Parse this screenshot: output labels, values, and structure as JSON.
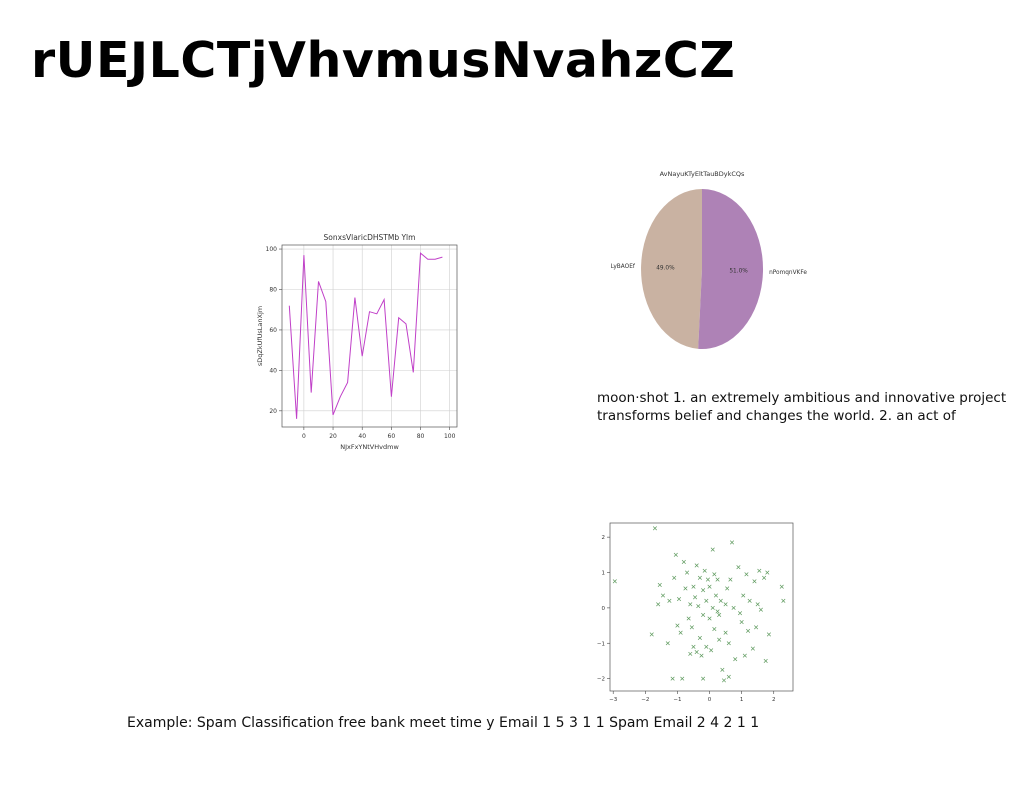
{
  "page": {
    "title": "rUEJLCTjVhvmusNvahzCZ",
    "caption_lines": [
      "moon·shot 1. an extremely ambitious and innovative project",
      "transforms belief and changes the world. 2. an act of"
    ],
    "footer": "Example: Spam Classification free bank meet time y Email 1 5 3 1 1 Spam Email 2 4 2 1 1"
  },
  "chart_data": [
    {
      "type": "line",
      "title": "SonxsVlaricDHSTMb Ylm",
      "xlabel": "NJxFxYNtVHvdmw",
      "ylabel": "sDqZkUfUsLanXjm",
      "x": [
        -10,
        -5,
        0,
        5,
        10,
        15,
        20,
        25,
        30,
        35,
        40,
        45,
        50,
        55,
        60,
        65,
        70,
        75,
        80,
        85,
        90,
        95
      ],
      "y": [
        72,
        16,
        97,
        29,
        84,
        74,
        18,
        27,
        34,
        76,
        47,
        69,
        68,
        75,
        27,
        66,
        63,
        39,
        98,
        95,
        95,
        96
      ],
      "xlim": [
        -15,
        105
      ],
      "ylim": [
        12,
        102
      ],
      "xticks": [
        0,
        20,
        40,
        60,
        80,
        100
      ],
      "yticks": [
        20,
        40,
        60,
        80,
        100
      ],
      "grid": true,
      "color": "#c040c8"
    },
    {
      "type": "pie",
      "title": "AvNayuKTyEltTauBDykCQs",
      "labels": [
        "LyBAOEf",
        "nPomqnVKFe"
      ],
      "values": [
        49.0,
        51.0
      ],
      "pct_labels": [
        "49.0%",
        "51.0%"
      ],
      "colors": [
        "#c9b2a2",
        "#ae82b6"
      ]
    },
    {
      "type": "scatter",
      "marker": "x",
      "color": "#5e9a5e",
      "xlim": [
        -3.1,
        2.6
      ],
      "ylim": [
        -2.35,
        2.4
      ],
      "xticks": [
        -3,
        -2,
        -1,
        0,
        1,
        2
      ],
      "yticks": [
        -2,
        -1,
        0,
        1,
        2
      ],
      "points": [
        [
          -2.95,
          0.75
        ],
        [
          -1.7,
          2.25
        ],
        [
          -1.55,
          0.65
        ],
        [
          -1.6,
          0.1
        ],
        [
          -1.8,
          -0.75
        ],
        [
          -1.3,
          -1.0
        ],
        [
          -1.45,
          0.35
        ],
        [
          -1.25,
          0.2
        ],
        [
          -1.1,
          0.85
        ],
        [
          -1.05,
          1.5
        ],
        [
          -1.0,
          -0.5
        ],
        [
          -0.95,
          0.25
        ],
        [
          -0.9,
          -0.7
        ],
        [
          -0.85,
          -2.0
        ],
        [
          -0.8,
          1.3
        ],
        [
          -0.75,
          0.55
        ],
        [
          -0.7,
          1.0
        ],
        [
          -0.65,
          -0.3
        ],
        [
          -0.6,
          0.1
        ],
        [
          -0.55,
          -0.55
        ],
        [
          -0.5,
          0.6
        ],
        [
          -0.5,
          -1.1
        ],
        [
          -0.45,
          0.3
        ],
        [
          -0.4,
          -1.25
        ],
        [
          -0.4,
          1.2
        ],
        [
          -0.35,
          0.05
        ],
        [
          -0.3,
          -0.85
        ],
        [
          -0.3,
          0.85
        ],
        [
          -0.25,
          -1.35
        ],
        [
          -0.2,
          0.5
        ],
        [
          -0.2,
          -0.2
        ],
        [
          -0.15,
          1.05
        ],
        [
          -0.1,
          0.2
        ],
        [
          -0.1,
          -1.1
        ],
        [
          -0.05,
          0.8
        ],
        [
          0.0,
          -0.3
        ],
        [
          0.0,
          0.6
        ],
        [
          0.05,
          -1.2
        ],
        [
          0.1,
          1.65
        ],
        [
          0.1,
          0.0
        ],
        [
          0.15,
          0.95
        ],
        [
          0.15,
          -0.6
        ],
        [
          0.2,
          0.35
        ],
        [
          0.25,
          -0.1
        ],
        [
          0.25,
          0.8
        ],
        [
          0.3,
          -0.2
        ],
        [
          0.35,
          0.2
        ],
        [
          0.4,
          -1.75
        ],
        [
          0.45,
          -2.05
        ],
        [
          0.5,
          0.1
        ],
        [
          0.5,
          -0.7
        ],
        [
          0.55,
          0.55
        ],
        [
          0.6,
          -1.0
        ],
        [
          0.65,
          0.8
        ],
        [
          0.7,
          1.85
        ],
        [
          0.75,
          0.0
        ],
        [
          0.8,
          -1.45
        ],
        [
          0.9,
          1.15
        ],
        [
          1.0,
          -0.4
        ],
        [
          1.05,
          0.35
        ],
        [
          1.1,
          -1.35
        ],
        [
          1.15,
          0.95
        ],
        [
          1.2,
          -0.65
        ],
        [
          1.25,
          0.2
        ],
        [
          1.35,
          -1.15
        ],
        [
          1.4,
          0.75
        ],
        [
          1.45,
          -0.55
        ],
        [
          1.5,
          0.1
        ],
        [
          1.55,
          1.05
        ],
        [
          1.6,
          -0.05
        ],
        [
          1.7,
          0.85
        ],
        [
          1.75,
          -1.5
        ],
        [
          1.8,
          1.0
        ],
        [
          1.85,
          -0.75
        ],
        [
          2.25,
          0.6
        ],
        [
          2.3,
          0.2
        ],
        [
          -1.15,
          -2.0
        ],
        [
          -0.6,
          -1.3
        ],
        [
          0.3,
          -0.9
        ],
        [
          0.95,
          -0.15
        ],
        [
          -0.2,
          -2.0
        ],
        [
          0.6,
          -1.95
        ]
      ]
    }
  ]
}
